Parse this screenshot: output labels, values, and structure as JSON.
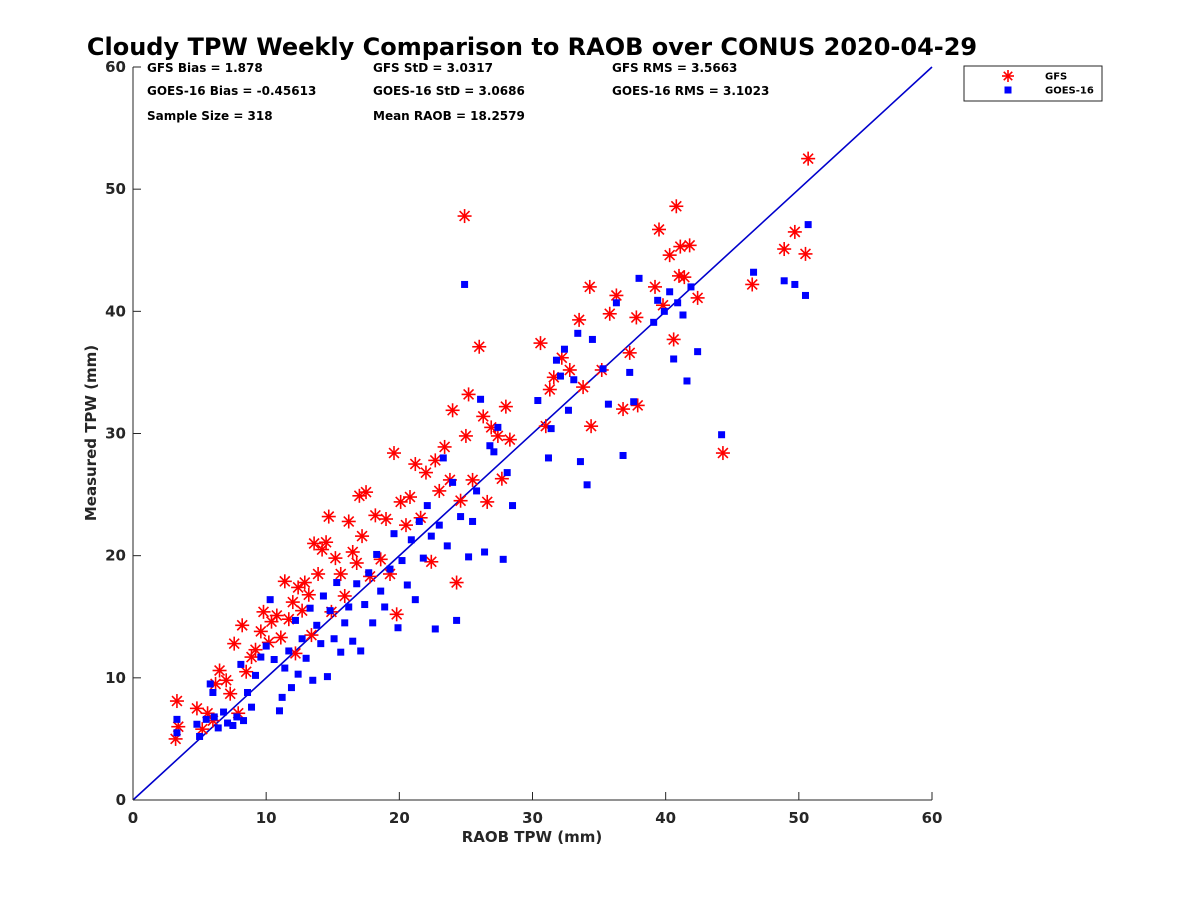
{
  "chart_data": {
    "type": "scatter",
    "title": "Cloudy TPW Weekly Comparison to RAOB over CONUS 2020-04-29",
    "xlabel": "RAOB TPW (mm)",
    "ylabel": "Measured TPW (mm)",
    "xlim": [
      0,
      60
    ],
    "ylim": [
      0,
      60
    ],
    "xticks": [
      0,
      10,
      20,
      30,
      40,
      50,
      60
    ],
    "yticks": [
      0,
      10,
      20,
      30,
      40,
      50,
      60
    ],
    "grid": false,
    "legend_position": "top-right",
    "stats": [
      [
        "GFS Bias = 1.878",
        "GFS StD = 3.0317",
        "GFS RMS = 3.5663"
      ],
      [
        "GOES-16 Bias = -0.45613",
        "GOES-16 StD = 3.0686",
        "GOES-16 RMS = 3.1023"
      ],
      [
        "Sample Size = 318",
        "Mean RAOB = 18.2579",
        ""
      ]
    ],
    "reference_line": {
      "x": [
        0,
        60
      ],
      "y": [
        0,
        60
      ],
      "color": "#0000cc"
    },
    "series": [
      {
        "name": "GFS",
        "marker": "asterisk",
        "color": "#ff0000",
        "points": [
          [
            3.3,
            8.1
          ],
          [
            3.2,
            5.0
          ],
          [
            3.4,
            6.0
          ],
          [
            4.8,
            7.5
          ],
          [
            5.2,
            5.8
          ],
          [
            5.6,
            7.1
          ],
          [
            6.0,
            6.5
          ],
          [
            6.2,
            9.5
          ],
          [
            6.5,
            10.6
          ],
          [
            7.0,
            9.8
          ],
          [
            7.3,
            8.7
          ],
          [
            7.6,
            12.8
          ],
          [
            7.9,
            7.1
          ],
          [
            8.2,
            14.3
          ],
          [
            8.5,
            10.5
          ],
          [
            8.9,
            11.7
          ],
          [
            9.2,
            12.3
          ],
          [
            9.6,
            13.8
          ],
          [
            9.8,
            15.4
          ],
          [
            10.2,
            12.9
          ],
          [
            10.4,
            14.6
          ],
          [
            10.8,
            15.1
          ],
          [
            11.1,
            13.3
          ],
          [
            11.4,
            17.9
          ],
          [
            11.7,
            14.8
          ],
          [
            12.0,
            16.2
          ],
          [
            12.2,
            12.0
          ],
          [
            12.4,
            17.4
          ],
          [
            12.7,
            15.5
          ],
          [
            12.9,
            17.8
          ],
          [
            13.2,
            16.8
          ],
          [
            13.4,
            13.5
          ],
          [
            13.6,
            21.0
          ],
          [
            13.9,
            18.5
          ],
          [
            14.2,
            20.5
          ],
          [
            14.5,
            21.1
          ],
          [
            14.7,
            23.2
          ],
          [
            14.9,
            15.4
          ],
          [
            15.2,
            19.8
          ],
          [
            15.6,
            18.5
          ],
          [
            15.9,
            16.7
          ],
          [
            16.2,
            22.8
          ],
          [
            16.5,
            20.3
          ],
          [
            16.8,
            19.4
          ],
          [
            17.0,
            24.9
          ],
          [
            17.2,
            21.6
          ],
          [
            17.5,
            25.2
          ],
          [
            17.8,
            18.3
          ],
          [
            18.2,
            23.3
          ],
          [
            18.6,
            19.7
          ],
          [
            19.0,
            23.0
          ],
          [
            19.3,
            18.5
          ],
          [
            19.6,
            28.4
          ],
          [
            19.8,
            15.2
          ],
          [
            20.1,
            24.4
          ],
          [
            20.5,
            22.5
          ],
          [
            20.8,
            24.8
          ],
          [
            21.2,
            27.5
          ],
          [
            21.6,
            23.1
          ],
          [
            22.0,
            26.8
          ],
          [
            22.4,
            19.5
          ],
          [
            22.7,
            27.8
          ],
          [
            23.0,
            25.3
          ],
          [
            23.4,
            28.9
          ],
          [
            23.8,
            26.2
          ],
          [
            24.0,
            31.9
          ],
          [
            24.3,
            17.8
          ],
          [
            24.6,
            24.5
          ],
          [
            24.9,
            47.8
          ],
          [
            25.0,
            29.8
          ],
          [
            25.2,
            33.2
          ],
          [
            25.5,
            26.2
          ],
          [
            26.0,
            37.1
          ],
          [
            26.3,
            31.4
          ],
          [
            26.6,
            24.4
          ],
          [
            26.9,
            30.5
          ],
          [
            27.4,
            29.8
          ],
          [
            27.7,
            26.3
          ],
          [
            28.0,
            32.2
          ],
          [
            28.3,
            29.5
          ],
          [
            30.6,
            37.4
          ],
          [
            31.0,
            30.6
          ],
          [
            31.3,
            33.6
          ],
          [
            31.6,
            34.6
          ],
          [
            32.2,
            36.2
          ],
          [
            32.8,
            35.2
          ],
          [
            33.5,
            39.3
          ],
          [
            33.8,
            33.8
          ],
          [
            34.3,
            42.0
          ],
          [
            34.4,
            30.6
          ],
          [
            35.2,
            35.2
          ],
          [
            35.8,
            39.8
          ],
          [
            36.3,
            41.3
          ],
          [
            36.8,
            32.0
          ],
          [
            37.3,
            36.6
          ],
          [
            37.8,
            39.5
          ],
          [
            37.9,
            32.3
          ],
          [
            39.2,
            42.0
          ],
          [
            39.5,
            46.7
          ],
          [
            39.8,
            40.5
          ],
          [
            40.3,
            44.6
          ],
          [
            40.6,
            37.7
          ],
          [
            40.8,
            48.6
          ],
          [
            41.0,
            42.9
          ],
          [
            41.1,
            45.3
          ],
          [
            41.4,
            42.8
          ],
          [
            41.8,
            45.4
          ],
          [
            42.4,
            41.1
          ],
          [
            44.3,
            28.4
          ],
          [
            46.5,
            42.2
          ],
          [
            48.9,
            45.1
          ],
          [
            49.7,
            46.5
          ],
          [
            50.5,
            44.7
          ],
          [
            50.7,
            52.5
          ]
        ]
      },
      {
        "name": "GOES-16",
        "marker": "square",
        "color": "#0000ff",
        "points": [
          [
            3.3,
            6.6
          ],
          [
            3.3,
            5.5
          ],
          [
            4.8,
            6.2
          ],
          [
            5.0,
            5.2
          ],
          [
            5.5,
            6.6
          ],
          [
            5.8,
            9.5
          ],
          [
            6.0,
            8.8
          ],
          [
            6.1,
            6.8
          ],
          [
            6.4,
            5.9
          ],
          [
            6.8,
            7.2
          ],
          [
            7.1,
            6.3
          ],
          [
            7.5,
            6.1
          ],
          [
            7.8,
            6.8
          ],
          [
            8.1,
            11.1
          ],
          [
            8.3,
            6.5
          ],
          [
            8.6,
            8.8
          ],
          [
            8.9,
            7.6
          ],
          [
            9.2,
            10.2
          ],
          [
            9.6,
            11.7
          ],
          [
            10.0,
            12.6
          ],
          [
            10.3,
            16.4
          ],
          [
            10.6,
            11.5
          ],
          [
            11.0,
            7.3
          ],
          [
            11.2,
            8.4
          ],
          [
            11.4,
            10.8
          ],
          [
            11.7,
            12.2
          ],
          [
            11.9,
            9.2
          ],
          [
            12.2,
            14.7
          ],
          [
            12.4,
            10.3
          ],
          [
            12.7,
            13.2
          ],
          [
            13.0,
            11.6
          ],
          [
            13.3,
            15.7
          ],
          [
            13.5,
            9.8
          ],
          [
            13.8,
            14.3
          ],
          [
            14.1,
            12.8
          ],
          [
            14.3,
            16.7
          ],
          [
            14.6,
            10.1
          ],
          [
            14.8,
            15.5
          ],
          [
            15.1,
            13.2
          ],
          [
            15.3,
            17.8
          ],
          [
            15.6,
            12.1
          ],
          [
            15.9,
            14.5
          ],
          [
            16.2,
            15.8
          ],
          [
            16.5,
            13.0
          ],
          [
            16.8,
            17.7
          ],
          [
            17.1,
            12.2
          ],
          [
            17.4,
            16.0
          ],
          [
            17.7,
            18.6
          ],
          [
            18.0,
            14.5
          ],
          [
            18.3,
            20.1
          ],
          [
            18.6,
            17.1
          ],
          [
            18.9,
            15.8
          ],
          [
            19.3,
            18.9
          ],
          [
            19.6,
            21.8
          ],
          [
            19.9,
            14.1
          ],
          [
            20.2,
            19.6
          ],
          [
            20.6,
            17.6
          ],
          [
            20.9,
            21.3
          ],
          [
            21.2,
            16.4
          ],
          [
            21.5,
            22.8
          ],
          [
            21.8,
            19.8
          ],
          [
            22.1,
            24.1
          ],
          [
            22.4,
            21.6
          ],
          [
            22.7,
            14.0
          ],
          [
            23.0,
            22.5
          ],
          [
            23.3,
            28.0
          ],
          [
            23.6,
            20.8
          ],
          [
            24.0,
            26.0
          ],
          [
            24.3,
            14.7
          ],
          [
            24.6,
            23.2
          ],
          [
            24.9,
            42.2
          ],
          [
            25.2,
            19.9
          ],
          [
            25.5,
            22.8
          ],
          [
            25.8,
            25.3
          ],
          [
            26.1,
            32.8
          ],
          [
            26.4,
            20.3
          ],
          [
            26.8,
            29.0
          ],
          [
            27.1,
            28.5
          ],
          [
            27.4,
            30.5
          ],
          [
            27.8,
            19.7
          ],
          [
            28.1,
            26.8
          ],
          [
            28.5,
            24.1
          ],
          [
            30.4,
            32.7
          ],
          [
            31.2,
            28.0
          ],
          [
            31.4,
            30.4
          ],
          [
            31.8,
            36.0
          ],
          [
            32.1,
            34.7
          ],
          [
            32.4,
            36.9
          ],
          [
            32.7,
            31.9
          ],
          [
            33.1,
            34.4
          ],
          [
            33.4,
            38.2
          ],
          [
            33.6,
            27.7
          ],
          [
            34.1,
            25.8
          ],
          [
            34.5,
            37.7
          ],
          [
            35.3,
            35.3
          ],
          [
            35.7,
            32.4
          ],
          [
            36.3,
            40.7
          ],
          [
            36.8,
            28.2
          ],
          [
            37.3,
            35.0
          ],
          [
            37.6,
            32.6
          ],
          [
            38.0,
            42.7
          ],
          [
            39.1,
            39.1
          ],
          [
            39.4,
            40.9
          ],
          [
            39.9,
            40.0
          ],
          [
            40.3,
            41.6
          ],
          [
            40.6,
            36.1
          ],
          [
            40.9,
            40.7
          ],
          [
            41.3,
            39.7
          ],
          [
            41.6,
            34.3
          ],
          [
            41.9,
            42.0
          ],
          [
            42.4,
            36.7
          ],
          [
            44.2,
            29.9
          ],
          [
            46.6,
            43.2
          ],
          [
            48.9,
            42.5
          ],
          [
            49.7,
            42.2
          ],
          [
            50.5,
            41.3
          ],
          [
            50.7,
            47.1
          ]
        ]
      }
    ]
  }
}
